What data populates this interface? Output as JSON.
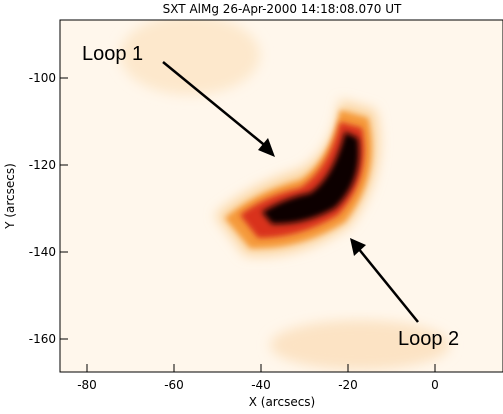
{
  "figure": {
    "title": "SXT AlMg 26-Apr-2000 14:18:08.070 UT",
    "x_label": "X (arcsecs)",
    "y_label": "Y (arcsecs)",
    "x_ticks": [
      "-80",
      "-60",
      "-40",
      "-20",
      "0"
    ],
    "y_ticks": [
      "-100",
      "-120",
      "-140",
      "-160"
    ],
    "annotations": [
      {
        "label": "Loop 1"
      },
      {
        "label": "Loop 2"
      }
    ]
  },
  "colors": {
    "background": "#fff7ec",
    "glow": "#fbd9a8",
    "mid": "#f59a3a",
    "bright": "#d9301a",
    "core": "#0b0000"
  }
}
